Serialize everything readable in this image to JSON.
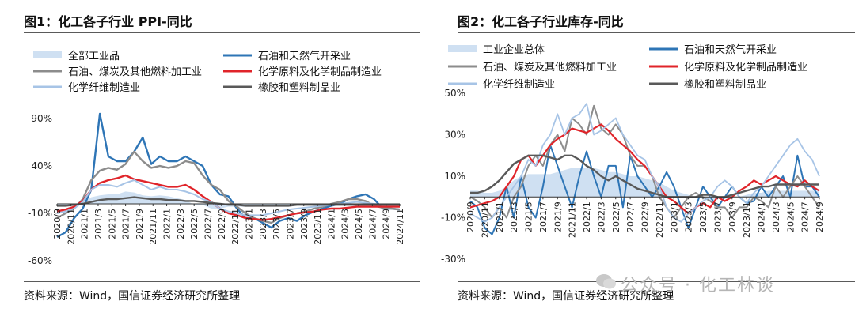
{
  "panels": [
    {
      "id": "left",
      "title": "图1：化工各子行业 PPI-同比",
      "source": "资料来源：Wind，国信证券经济研究所整理"
    },
    {
      "id": "right",
      "title": "图2：化工各子行业库存-同比",
      "source": "资料来源：Wind，国信证券经济研究所整理"
    }
  ],
  "watermark": {
    "text": "公众号 · 化工林谈",
    "icon": "wechat-icon"
  },
  "chart_data": [
    {
      "type": "line",
      "title": "化工各子行业 PPI-同比",
      "ylim": [
        -60,
        90
      ],
      "yticks": [
        "-60%",
        "-10%",
        "40%",
        "90%"
      ],
      "ytick_values": [
        -60,
        -10,
        40,
        90
      ],
      "xticks": [
        "2020/9",
        "2020/11",
        "2021/1",
        "2021/3",
        "2021/5",
        "2021/7",
        "2021/9",
        "2021/11",
        "2022/1",
        "2022/3",
        "2022/5",
        "2022/7",
        "2022/9",
        "2022/11",
        "2023/1",
        "2023/3",
        "2023/5",
        "2023/7",
        "2023/9",
        "2023/11",
        "2024/1",
        "2024/3",
        "2024/5",
        "2024/7",
        "2024/9",
        "2024/11"
      ],
      "legend_placement": "top",
      "grid": false,
      "series": [
        {
          "name": "全部工业品",
          "style": "area",
          "color": "#cfe0f2",
          "values": [
            -2,
            -2,
            0,
            2,
            7,
            9,
            10,
            10,
            13,
            12,
            9,
            8,
            9,
            8,
            6,
            4,
            -1,
            -1,
            -5,
            -5,
            -3,
            -3,
            -3,
            -3,
            -2,
            -2,
            -2,
            -2,
            -2,
            -1,
            0,
            0,
            -2,
            -2,
            -2,
            -2,
            -2,
            -2,
            -2,
            -2,
            -2
          ]
        },
        {
          "name": "石油和天然气开采业",
          "color": "#2e75b6",
          "width": 2.4,
          "values": [
            -35,
            -30,
            -15,
            -5,
            15,
            95,
            50,
            45,
            45,
            55,
            70,
            42,
            50,
            45,
            45,
            50,
            45,
            40,
            20,
            10,
            8,
            -5,
            -15,
            -15,
            -20,
            -25,
            -18,
            -15,
            -18,
            -12,
            -8,
            -5,
            -2,
            0,
            5,
            8,
            10,
            5,
            -5,
            -5,
            -6
          ]
        },
        {
          "name": "石油、煤炭及其他燃料加工业",
          "color": "#8c8c8c",
          "width": 2.4,
          "values": [
            -15,
            -10,
            -5,
            5,
            25,
            35,
            38,
            36,
            42,
            55,
            45,
            38,
            40,
            38,
            40,
            45,
            43,
            30,
            20,
            15,
            3,
            -3,
            -10,
            -15,
            -18,
            -20,
            -15,
            -12,
            -10,
            -8,
            -5,
            -3,
            0,
            2,
            5,
            5,
            3,
            -2,
            -4,
            -5,
            -6
          ]
        },
        {
          "name": "化学原料及化学制品制造业",
          "color": "#e0242a",
          "width": 2.4,
          "values": [
            -8,
            -6,
            -3,
            3,
            15,
            22,
            25,
            27,
            30,
            26,
            24,
            22,
            20,
            18,
            18,
            20,
            15,
            8,
            2,
            -5,
            -10,
            -12,
            -15,
            -16,
            -17,
            -16,
            -14,
            -12,
            -10,
            -9,
            -8,
            -6,
            -5,
            -5,
            -4,
            -3,
            -3,
            -3,
            -3,
            -3,
            -3
          ]
        },
        {
          "name": "化学纤维制造业",
          "color": "#a7c4e6",
          "width": 2,
          "values": [
            -10,
            -8,
            -5,
            2,
            15,
            20,
            20,
            18,
            22,
            25,
            20,
            15,
            18,
            15,
            15,
            13,
            10,
            5,
            2,
            -5,
            -8,
            -10,
            -12,
            -12,
            -12,
            -10,
            -8,
            -6,
            -5,
            -4,
            -3,
            -2,
            -1,
            0,
            1,
            2,
            1,
            0,
            -1,
            -1,
            -1
          ]
        },
        {
          "name": "橡胶和塑料制品业",
          "color": "#595959",
          "width": 2.4,
          "values": [
            -2,
            -2,
            -1,
            0,
            2,
            4,
            5,
            5,
            6,
            7,
            6,
            5,
            5,
            4,
            4,
            3,
            3,
            2,
            1,
            0,
            -1,
            -1,
            -2,
            -2,
            -2,
            -2,
            -2,
            -2,
            -1,
            -1,
            -1,
            -1,
            -1,
            -1,
            -1,
            -1,
            -1,
            -1,
            -1,
            -1,
            -1
          ]
        }
      ]
    },
    {
      "type": "line",
      "title": "化工各子行业库存-同比",
      "ylim": [
        -30,
        50
      ],
      "yticks": [
        "-30%",
        "-10%",
        "10%",
        "30%",
        "50%"
      ],
      "ytick_values": [
        -30,
        -10,
        10,
        30,
        50
      ],
      "xticks": [
        "2020/9",
        "2020/11",
        "2021/1",
        "2021/3",
        "2021/5",
        "2021/7",
        "2021/9",
        "2021/11",
        "2022/1",
        "2022/3",
        "2022/5",
        "2022/7",
        "2022/9",
        "2022/11",
        "2023/1",
        "2023/3",
        "2023/5",
        "2023/7",
        "2023/9",
        "2023/11",
        "2024/1",
        "2024/3",
        "2024/5",
        "2024/7",
        "2024/9"
      ],
      "legend_placement": "top",
      "grid": false,
      "series": [
        {
          "name": "工业企业总体",
          "style": "area",
          "color": "#cfe0f2",
          "values": [
            3,
            3,
            2,
            2,
            3,
            5,
            8,
            10,
            11,
            11,
            11,
            11,
            12,
            13,
            14,
            14,
            14,
            14,
            13,
            12,
            12,
            11,
            10,
            10,
            9,
            8,
            7,
            5,
            3,
            2,
            1,
            0,
            -1,
            -2,
            -1,
            -1,
            0,
            0,
            1,
            2,
            2,
            3,
            3,
            3,
            3,
            3,
            3,
            3,
            3
          ]
        },
        {
          "name": "石油和天然气开采业",
          "color": "#2e75b6",
          "width": 2,
          "values": [
            -2,
            -5,
            -15,
            -18,
            -10,
            5,
            -10,
            10,
            -5,
            -10,
            5,
            25,
            15,
            5,
            -5,
            10,
            22,
            10,
            0,
            15,
            15,
            -5,
            20,
            10,
            5,
            0,
            5,
            12,
            5,
            -5,
            -15,
            -5,
            5,
            0,
            -5,
            0,
            5,
            0,
            -3,
            -2,
            5,
            0,
            5,
            10,
            0,
            20,
            5,
            5,
            0
          ]
        },
        {
          "name": "石油、煤炭及其他燃料加工业",
          "color": "#8c8c8c",
          "width": 2,
          "values": [
            0,
            -2,
            -5,
            -10,
            -5,
            -10,
            0,
            5,
            15,
            20,
            15,
            25,
            30,
            22,
            38,
            35,
            30,
            44,
            33,
            30,
            35,
            30,
            20,
            15,
            15,
            10,
            0,
            -5,
            -10,
            -5,
            0,
            2,
            0,
            -2,
            -5,
            -5,
            -10,
            -5,
            -5,
            0,
            -2,
            -5,
            5,
            0,
            5,
            10,
            5,
            0,
            -5
          ]
        },
        {
          "name": "化学原料及化学制品制造业",
          "color": "#e0242a",
          "width": 2.2,
          "values": [
            -5,
            -4,
            -3,
            -2,
            0,
            5,
            10,
            18,
            20,
            15,
            20,
            25,
            28,
            30,
            33,
            32,
            31,
            33,
            35,
            32,
            28,
            25,
            22,
            18,
            15,
            10,
            5,
            0,
            -2,
            -5,
            -8,
            -5,
            -3,
            -5,
            0,
            -2,
            0,
            3,
            5,
            8,
            6,
            8,
            10,
            8,
            6,
            5,
            8,
            5,
            3
          ]
        },
        {
          "name": "化学纤维制造业",
          "color": "#a7c4e6",
          "width": 1.8,
          "values": [
            -8,
            -10,
            -12,
            -10,
            -5,
            0,
            5,
            10,
            18,
            15,
            25,
            30,
            40,
            30,
            38,
            40,
            45,
            30,
            32,
            35,
            38,
            30,
            25,
            20,
            18,
            10,
            5,
            -5,
            -10,
            -12,
            -8,
            -5,
            -2,
            0,
            5,
            8,
            5,
            0,
            -3,
            2,
            5,
            10,
            15,
            20,
            25,
            28,
            22,
            18,
            10
          ]
        },
        {
          "name": "橡胶和塑料制品业",
          "color": "#595959",
          "width": 2.4,
          "values": [
            2,
            2,
            3,
            5,
            8,
            12,
            16,
            18,
            20,
            20,
            20,
            19,
            18,
            20,
            20,
            18,
            15,
            13,
            10,
            8,
            10,
            8,
            6,
            4,
            3,
            2,
            1,
            0,
            0,
            0,
            0,
            0,
            1,
            1,
            0,
            0,
            1,
            2,
            3,
            4,
            5,
            5,
            6,
            6,
            6,
            6,
            6,
            6,
            6
          ]
        }
      ]
    }
  ]
}
